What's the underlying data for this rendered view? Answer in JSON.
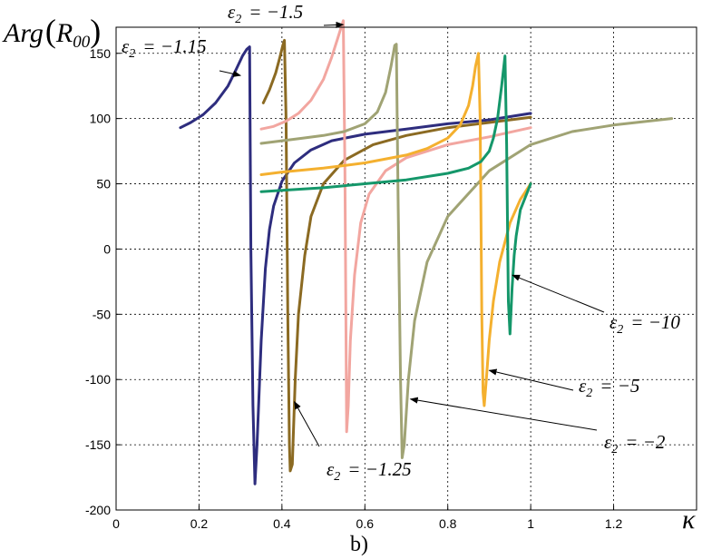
{
  "caption": "b)",
  "chart_data": {
    "type": "line",
    "xlabel": "κ",
    "ylabel": "Arg(R00)",
    "ylabel_parts": {
      "base": "Arg",
      "sym": "R",
      "sub": "00"
    },
    "xlim": [
      0,
      1.4
    ],
    "ylim": [
      -200,
      170
    ],
    "xticks": [
      0,
      0.2,
      0.4,
      0.6,
      0.8,
      1,
      1.2
    ],
    "xtick_labels": [
      "0",
      "0.2",
      "0.4",
      "0.6",
      "0.8",
      "1",
      "1.2"
    ],
    "yticks": [
      -200,
      -150,
      -100,
      -50,
      0,
      50,
      100,
      150
    ],
    "ytick_labels": [
      "-200",
      "-150",
      "-100",
      "-50",
      "0",
      "50",
      "100",
      "150"
    ],
    "grid": true,
    "series": [
      {
        "name": "ε2 = −1.15",
        "color": "#2E2D7E",
        "x": [
          0.155,
          0.18,
          0.21,
          0.24,
          0.27,
          0.29,
          0.305,
          0.315,
          0.322,
          0.325,
          0.33,
          0.335,
          0.34,
          0.35,
          0.36,
          0.37,
          0.38,
          0.4,
          0.43,
          0.47,
          0.52,
          0.6,
          0.7,
          0.8,
          0.9,
          1.0
        ],
        "y": [
          93,
          97,
          103,
          112,
          125,
          138,
          148,
          153,
          155,
          0,
          -120,
          -180,
          -150,
          -70,
          -15,
          15,
          33,
          52,
          66,
          76,
          83,
          88,
          92,
          96,
          99,
          104
        ]
      },
      {
        "name": "ε2 = −1.25",
        "color": "#8B6A22",
        "x": [
          0.355,
          0.37,
          0.385,
          0.395,
          0.402,
          0.406,
          0.41,
          0.414,
          0.418,
          0.42,
          0.425,
          0.432,
          0.44,
          0.455,
          0.47,
          0.5,
          0.55,
          0.62,
          0.7,
          0.8,
          0.9,
          1.0
        ],
        "y": [
          112,
          122,
          135,
          147,
          156,
          160,
          100,
          -50,
          -150,
          -170,
          -165,
          -100,
          -50,
          -5,
          25,
          50,
          68,
          80,
          87,
          93,
          97,
          101
        ]
      },
      {
        "name": "ε2 = −1.5",
        "color": "#F2A6A0",
        "x": [
          0.35,
          0.38,
          0.41,
          0.44,
          0.47,
          0.5,
          0.52,
          0.535,
          0.543,
          0.548,
          0.552,
          0.556,
          0.56,
          0.565,
          0.575,
          0.59,
          0.61,
          0.65,
          0.7,
          0.8,
          0.9,
          1.0
        ],
        "y": [
          92,
          94,
          98,
          104,
          114,
          130,
          147,
          162,
          170,
          175,
          60,
          -140,
          -120,
          -70,
          -20,
          20,
          42,
          60,
          70,
          80,
          86,
          93
        ]
      },
      {
        "name": "ε2 = −2",
        "color": "#A0A374",
        "x": [
          0.35,
          0.4,
          0.45,
          0.5,
          0.55,
          0.6,
          0.63,
          0.65,
          0.663,
          0.672,
          0.676,
          0.68,
          0.686,
          0.69,
          0.695,
          0.705,
          0.72,
          0.75,
          0.8,
          0.9,
          1.0,
          1.1,
          1.2,
          1.34
        ],
        "y": [
          81,
          83,
          85,
          87,
          90,
          96,
          105,
          120,
          140,
          156,
          157,
          40,
          -100,
          -160,
          -150,
          -100,
          -55,
          -10,
          25,
          60,
          80,
          90,
          95,
          100
        ]
      },
      {
        "name": "ε2 = −5",
        "color": "#F4B02F",
        "x": [
          0.35,
          0.4,
          0.5,
          0.6,
          0.7,
          0.75,
          0.8,
          0.83,
          0.85,
          0.86,
          0.867,
          0.874,
          0.878,
          0.882,
          0.885,
          0.888,
          0.893,
          0.9,
          0.91,
          0.925,
          0.95,
          0.975,
          1.0
        ],
        "y": [
          57,
          59,
          62,
          66,
          72,
          77,
          85,
          95,
          110,
          125,
          140,
          150,
          100,
          -50,
          -110,
          -120,
          -100,
          -70,
          -40,
          -10,
          20,
          38,
          50
        ]
      },
      {
        "name": "ε2 = −10",
        "color": "#15976A",
        "x": [
          0.35,
          0.4,
          0.5,
          0.6,
          0.7,
          0.8,
          0.85,
          0.88,
          0.9,
          0.91,
          0.92,
          0.93,
          0.938,
          0.942,
          0.946,
          0.95,
          0.955,
          0.96,
          0.965,
          0.975,
          1.0
        ],
        "y": [
          44,
          45,
          47,
          50,
          53,
          58,
          62,
          67,
          75,
          85,
          100,
          125,
          148,
          80,
          -40,
          -65,
          -30,
          -5,
          10,
          30,
          50
        ]
      }
    ],
    "annotations": [
      {
        "sym": "ε",
        "sub": "2",
        "rhs": "= −1.15",
        "series": 0,
        "target": [
          0.3,
          133
        ]
      },
      {
        "sym": "ε",
        "sub": "2",
        "rhs": "= −1.5",
        "series": 2,
        "target": [
          0.548,
          172
        ]
      },
      {
        "sym": "ε",
        "sub": "2",
        "rhs": "= −1.25",
        "series": 1,
        "target": [
          0.43,
          -117
        ]
      },
      {
        "sym": "ε",
        "sub": "2",
        "rhs": "= −10",
        "series": 5,
        "target": [
          0.956,
          -20
        ]
      },
      {
        "sym": "ε",
        "sub": "2",
        "rhs": "= −5",
        "series": 4,
        "target": [
          0.9,
          -93
        ]
      },
      {
        "sym": "ε",
        "sub": "2",
        "rhs": "= −2",
        "series": 3,
        "target": [
          0.71,
          -115
        ]
      }
    ]
  }
}
